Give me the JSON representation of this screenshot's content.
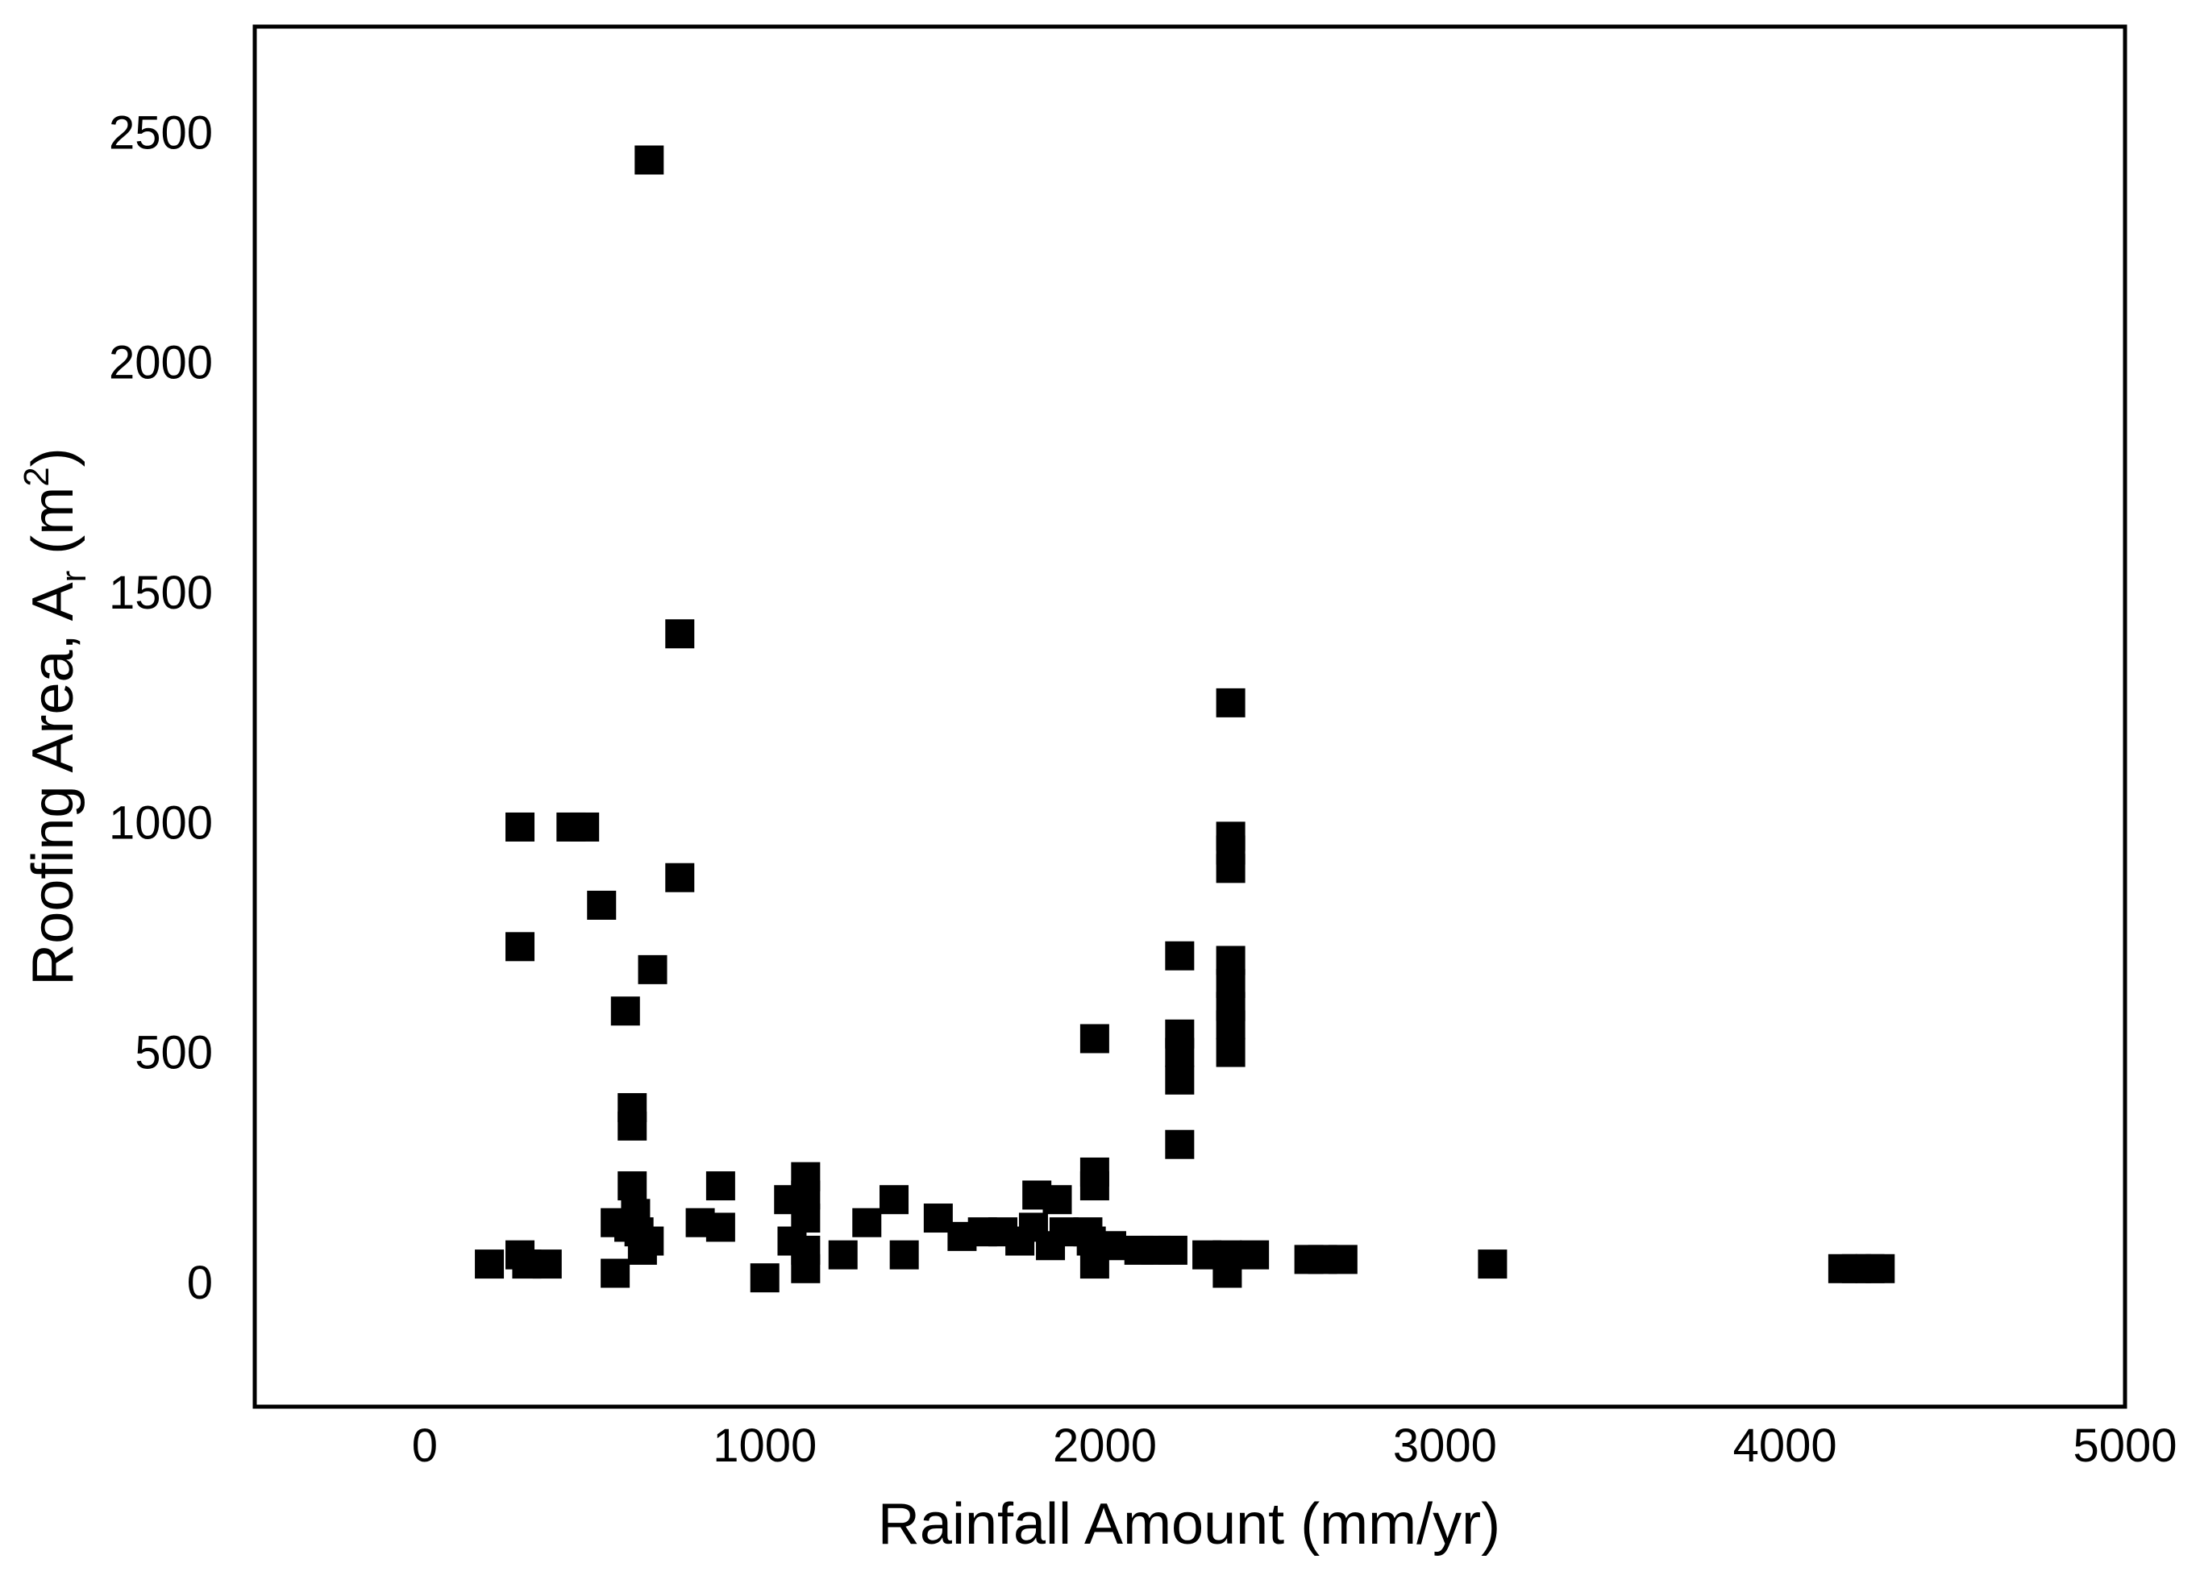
{
  "chart_data": {
    "type": "scatter",
    "title": "",
    "xlabel": "Rainfall Amount (mm/yr)",
    "ylabel": {
      "prefix": "Roofing Area, A",
      "subscript": "r",
      "mid": " (m",
      "superscript": "2",
      "suffix": ")"
    },
    "xlim": [
      -500,
      5000
    ],
    "ylim": [
      -270,
      2730
    ],
    "x_ticks": [
      0,
      1000,
      2000,
      3000,
      4000,
      5000
    ],
    "y_ticks": [
      0,
      500,
      1000,
      1500,
      2000,
      2500
    ],
    "grid": false,
    "legend": "none",
    "marker": "square",
    "marker_color": "#000000",
    "points": [
      {
        "x": 190,
        "y": 40
      },
      {
        "x": 280,
        "y": 60
      },
      {
        "x": 300,
        "y": 40
      },
      {
        "x": 360,
        "y": 40
      },
      {
        "x": 280,
        "y": 990
      },
      {
        "x": 280,
        "y": 730
      },
      {
        "x": 430,
        "y": 990
      },
      {
        "x": 470,
        "y": 990
      },
      {
        "x": 520,
        "y": 820
      },
      {
        "x": 560,
        "y": 20
      },
      {
        "x": 560,
        "y": 130
      },
      {
        "x": 590,
        "y": 590
      },
      {
        "x": 600,
        "y": 120
      },
      {
        "x": 610,
        "y": 380
      },
      {
        "x": 610,
        "y": 340
      },
      {
        "x": 610,
        "y": 210
      },
      {
        "x": 620,
        "y": 150
      },
      {
        "x": 630,
        "y": 110
      },
      {
        "x": 640,
        "y": 70
      },
      {
        "x": 660,
        "y": 2440
      },
      {
        "x": 670,
        "y": 680
      },
      {
        "x": 660,
        "y": 90
      },
      {
        "x": 750,
        "y": 1410
      },
      {
        "x": 750,
        "y": 880
      },
      {
        "x": 810,
        "y": 130
      },
      {
        "x": 870,
        "y": 210
      },
      {
        "x": 870,
        "y": 120
      },
      {
        "x": 1000,
        "y": 10
      },
      {
        "x": 1070,
        "y": 180
      },
      {
        "x": 1080,
        "y": 90
      },
      {
        "x": 1120,
        "y": 230
      },
      {
        "x": 1120,
        "y": 190
      },
      {
        "x": 1120,
        "y": 140
      },
      {
        "x": 1120,
        "y": 70
      },
      {
        "x": 1120,
        "y": 30
      },
      {
        "x": 1230,
        "y": 60
      },
      {
        "x": 1300,
        "y": 130
      },
      {
        "x": 1380,
        "y": 180
      },
      {
        "x": 1410,
        "y": 60
      },
      {
        "x": 1510,
        "y": 140
      },
      {
        "x": 1580,
        "y": 100
      },
      {
        "x": 1640,
        "y": 110
      },
      {
        "x": 1700,
        "y": 110
      },
      {
        "x": 1750,
        "y": 90
      },
      {
        "x": 1790,
        "y": 120
      },
      {
        "x": 1800,
        "y": 190
      },
      {
        "x": 1840,
        "y": 80
      },
      {
        "x": 1860,
        "y": 180
      },
      {
        "x": 1880,
        "y": 110
      },
      {
        "x": 1950,
        "y": 110
      },
      {
        "x": 1960,
        "y": 90
      },
      {
        "x": 1970,
        "y": 40
      },
      {
        "x": 1970,
        "y": 240
      },
      {
        "x": 1970,
        "y": 210
      },
      {
        "x": 1970,
        "y": 530
      },
      {
        "x": 2020,
        "y": 80
      },
      {
        "x": 2100,
        "y": 70
      },
      {
        "x": 2150,
        "y": 70
      },
      {
        "x": 2200,
        "y": 70
      },
      {
        "x": 2220,
        "y": 710
      },
      {
        "x": 2220,
        "y": 540
      },
      {
        "x": 2220,
        "y": 500
      },
      {
        "x": 2220,
        "y": 440
      },
      {
        "x": 2220,
        "y": 300
      },
      {
        "x": 2300,
        "y": 60
      },
      {
        "x": 2360,
        "y": 20
      },
      {
        "x": 2360,
        "y": 60
      },
      {
        "x": 2370,
        "y": 1260
      },
      {
        "x": 2370,
        "y": 970
      },
      {
        "x": 2370,
        "y": 940
      },
      {
        "x": 2370,
        "y": 900
      },
      {
        "x": 2370,
        "y": 700
      },
      {
        "x": 2370,
        "y": 650
      },
      {
        "x": 2370,
        "y": 600
      },
      {
        "x": 2370,
        "y": 560
      },
      {
        "x": 2370,
        "y": 500
      },
      {
        "x": 2440,
        "y": 60
      },
      {
        "x": 2600,
        "y": 50
      },
      {
        "x": 2640,
        "y": 50
      },
      {
        "x": 2700,
        "y": 50
      },
      {
        "x": 3140,
        "y": 40
      },
      {
        "x": 4170,
        "y": 30
      },
      {
        "x": 4210,
        "y": 30
      },
      {
        "x": 4250,
        "y": 30
      },
      {
        "x": 4280,
        "y": 30
      }
    ]
  }
}
